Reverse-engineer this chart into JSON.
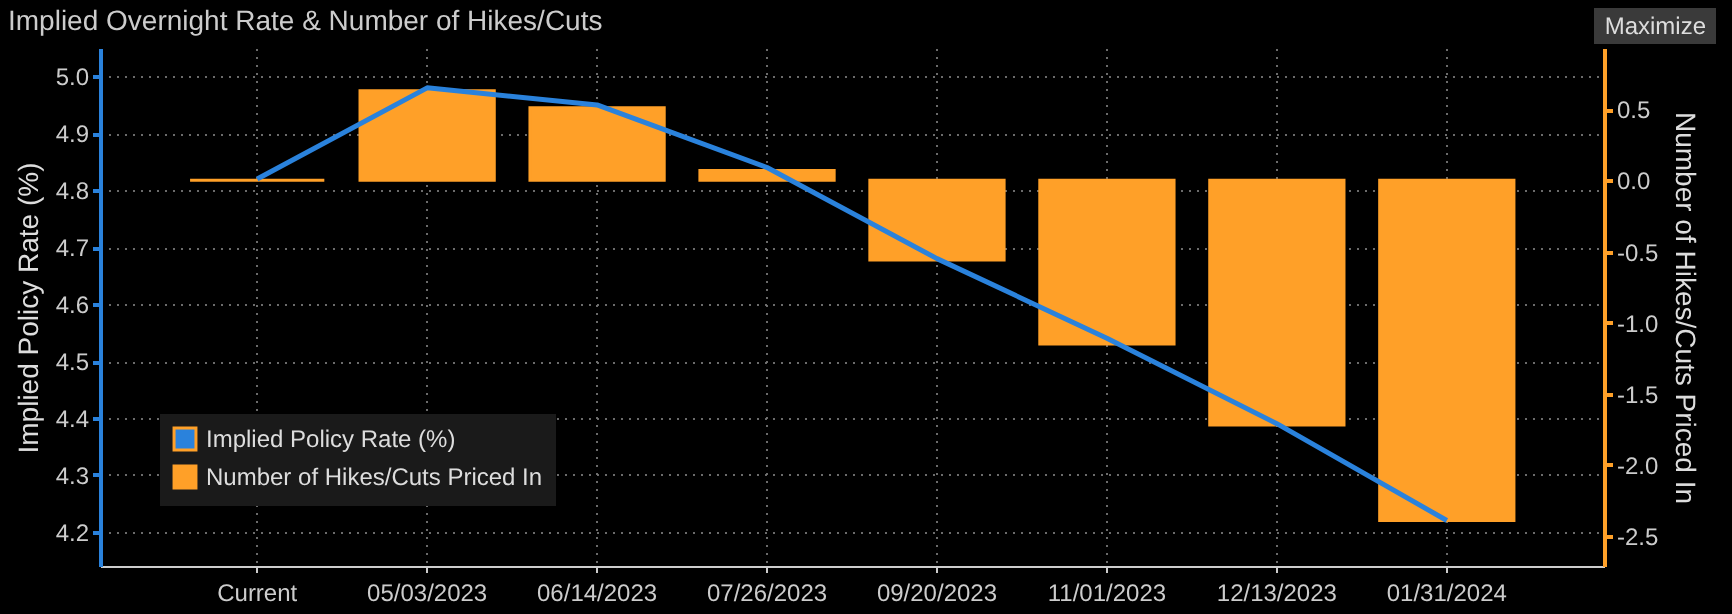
{
  "chart_data": {
    "type": "bar",
    "title": "Implied Overnight Rate & Number of Hikes/Cuts",
    "ylabel": "Implied Policy Rate (%)",
    "y2label": "Number of Hikes/Cuts Priced In",
    "annotations": [
      "Maximize"
    ],
    "categories": [
      "Current",
      "05/03/2023",
      "06/14/2023",
      "07/26/2023",
      "09/20/2023",
      "11/01/2023",
      "12/13/2023",
      "01/31/2024"
    ],
    "series": [
      {
        "name": "Number of Hikes/Cuts Priced In",
        "axis": "y2",
        "color": "#ffa028",
        "values": [
          0,
          0.63,
          0.51,
          0.07,
          -0.56,
          -1.15,
          -1.72,
          -2.39
        ]
      },
      {
        "name": "Implied Policy Rate (%)",
        "type": "line",
        "axis": "y",
        "color": "#2a82dc",
        "values": [
          4.82,
          4.98,
          4.95,
          4.84,
          4.68,
          4.54,
          4.39,
          4.22
        ]
      }
    ],
    "ylim": [
      4.14,
      5.05
    ],
    "yticks": [
      4.2,
      4.3,
      4.4,
      4.5,
      4.6,
      4.7,
      4.8,
      4.9,
      {
        "value": 5,
        "label": "5.0"
      }
    ],
    "y2lim": [
      -2.71,
      0.93
    ],
    "y2ticks": [
      {
        "value": -2.5,
        "label": "-2.5"
      },
      {
        "value": -2,
        "label": "-2.0"
      },
      -1.5,
      {
        "value": -1,
        "label": "-1.0"
      },
      -0.5,
      {
        "value": 0,
        "label": "0.0"
      },
      0.5
    ],
    "grid": true,
    "legend": "bottom left"
  }
}
